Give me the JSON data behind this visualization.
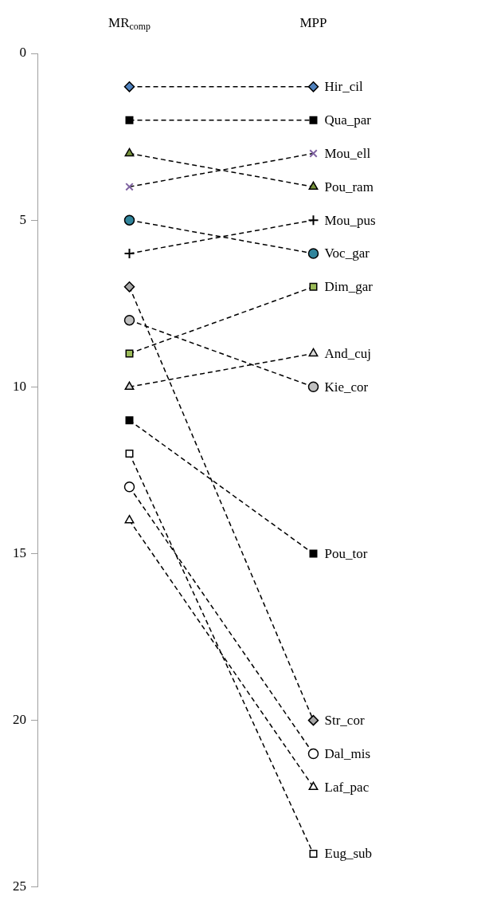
{
  "chart_data": {
    "type": "line",
    "categories": [
      "MR$_{comp}$",
      "MPP"
    ],
    "ylim": [
      25,
      0
    ],
    "yticks": [
      0,
      5,
      10,
      15,
      20,
      25
    ],
    "grid": false,
    "legend": false,
    "line_style": "dashed",
    "series": [
      {
        "name": "Hir_cil",
        "color": "#4f81bd",
        "marker": "diamond",
        "values": [
          1,
          1
        ]
      },
      {
        "name": "Qua_par",
        "color": "#000000",
        "marker": "square",
        "values": [
          2,
          2
        ]
      },
      {
        "name": "Pou_ram",
        "color": "#77933c",
        "marker": "triangle",
        "values": [
          3,
          4
        ]
      },
      {
        "name": "Mou_ell",
        "color": "#8064a2",
        "marker": "cross",
        "values": [
          4,
          3
        ]
      },
      {
        "name": "Voc_gar",
        "color": "#31859c",
        "marker": "circle",
        "values": [
          5,
          6
        ]
      },
      {
        "name": "Mou_pus",
        "color": "#000000",
        "marker": "plus",
        "values": [
          6,
          5
        ]
      },
      {
        "name": "Str_cor",
        "color": "#a6a6a6",
        "marker": "diamond",
        "values": [
          7,
          20
        ]
      },
      {
        "name": "Kie_cor",
        "color": "#bfbfbf",
        "marker": "circle",
        "values": [
          8,
          10
        ]
      },
      {
        "name": "Dim_gar",
        "color": "#9bbb59",
        "marker": "square",
        "values": [
          9,
          7
        ]
      },
      {
        "name": "And_cuj",
        "color": "#d9d9d9",
        "marker": "triangle",
        "values": [
          10,
          9
        ]
      },
      {
        "name": "Pou_tor",
        "color": "#000000",
        "marker": "square",
        "values": [
          11,
          15
        ]
      },
      {
        "name": "Eug_sub",
        "color": "#ffffff",
        "marker": "square",
        "values": [
          12,
          24
        ]
      },
      {
        "name": "Dal_mis",
        "color": "#ffffff",
        "marker": "circle",
        "values": [
          13,
          21
        ]
      },
      {
        "name": "Laf_pac",
        "color": "#ffffff",
        "marker": "triangle",
        "values": [
          14,
          22
        ]
      }
    ]
  }
}
